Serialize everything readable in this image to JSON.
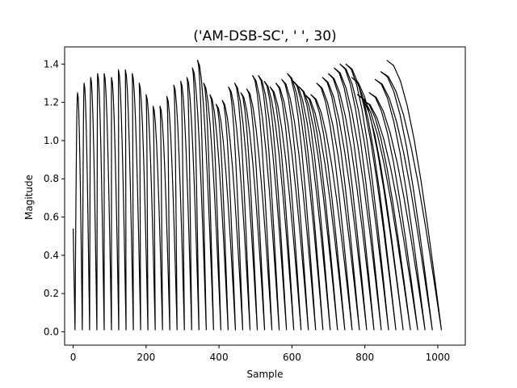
{
  "chart_data": {
    "type": "line",
    "title": "('AM-DSB-SC', '  ', 30)",
    "xlabel": "Sample",
    "ylabel": "Magitude",
    "xlim": [
      -23.5,
      1075.5
    ],
    "ylim": [
      -0.07,
      1.49
    ],
    "xticks": [
      0,
      200,
      400,
      600,
      800,
      1000
    ],
    "yticks": [
      0.0,
      0.2,
      0.4,
      0.6,
      0.8,
      1.0,
      1.2,
      1.4
    ],
    "xtick_labels": [
      "0",
      "200",
      "400",
      "600",
      "800",
      "1000"
    ],
    "ytick_labels": [
      "0.0",
      "0.2",
      "0.4",
      "0.6",
      "0.8",
      "1.0",
      "1.2",
      "1.4"
    ],
    "grid": false,
    "line_color": "#000000",
    "series": [
      {
        "name": "",
        "first_value": 0.54,
        "last_value": 0.75,
        "x_end": 1023,
        "troughs": [
          5,
          25,
          45,
          65,
          85,
          105,
          125,
          145,
          165,
          185,
          205,
          225,
          245,
          265,
          285,
          305,
          325,
          345,
          365,
          385,
          405,
          425,
          445,
          465,
          485,
          505,
          525,
          545,
          565,
          585,
          605,
          625,
          645,
          665,
          685,
          705,
          725,
          745,
          765,
          785,
          805,
          825,
          845,
          865,
          885,
          905,
          925,
          945,
          965,
          985,
          1010
        ],
        "peaks": [
          {
            "x": 12,
            "y": 1.25
          },
          {
            "x": 30,
            "y": 1.3
          },
          {
            "x": 48,
            "y": 1.33
          },
          {
            "x": 67,
            "y": 1.35
          },
          {
            "x": 85,
            "y": 1.35
          },
          {
            "x": 105,
            "y": 1.33
          },
          {
            "x": 124,
            "y": 1.37
          },
          {
            "x": 143,
            "y": 1.37
          },
          {
            "x": 162,
            "y": 1.35
          },
          {
            "x": 181,
            "y": 1.3
          },
          {
            "x": 200,
            "y": 1.24
          },
          {
            "x": 219,
            "y": 1.18
          },
          {
            "x": 238,
            "y": 1.18
          },
          {
            "x": 257,
            "y": 1.23
          },
          {
            "x": 276,
            "y": 1.29
          },
          {
            "x": 295,
            "y": 1.31
          },
          {
            "x": 312,
            "y": 1.33
          },
          {
            "x": 327,
            "y": 1.38
          },
          {
            "x": 341,
            "y": 1.42
          },
          {
            "x": 358,
            "y": 1.3
          },
          {
            "x": 375,
            "y": 1.24
          },
          {
            "x": 392,
            "y": 1.19
          },
          {
            "x": 409,
            "y": 1.21
          },
          {
            "x": 426,
            "y": 1.28
          },
          {
            "x": 443,
            "y": 1.3
          },
          {
            "x": 460,
            "y": 1.25
          },
          {
            "x": 476,
            "y": 1.27
          },
          {
            "x": 492,
            "y": 1.34
          },
          {
            "x": 508,
            "y": 1.34
          },
          {
            "x": 524,
            "y": 1.31
          },
          {
            "x": 540,
            "y": 1.28
          },
          {
            "x": 556,
            "y": 1.3
          },
          {
            "x": 572,
            "y": 1.32
          },
          {
            "x": 588,
            "y": 1.35
          },
          {
            "x": 604,
            "y": 1.31
          },
          {
            "x": 620,
            "y": 1.28
          },
          {
            "x": 636,
            "y": 1.24
          },
          {
            "x": 652,
            "y": 1.24
          },
          {
            "x": 668,
            "y": 1.3
          },
          {
            "x": 684,
            "y": 1.33
          },
          {
            "x": 700,
            "y": 1.35
          },
          {
            "x": 716,
            "y": 1.38
          },
          {
            "x": 732,
            "y": 1.4
          },
          {
            "x": 748,
            "y": 1.4
          },
          {
            "x": 764,
            "y": 1.33
          },
          {
            "x": 780,
            "y": 1.24
          },
          {
            "x": 796,
            "y": 1.21
          },
          {
            "x": 812,
            "y": 1.25
          },
          {
            "x": 828,
            "y": 1.32
          },
          {
            "x": 844,
            "y": 1.36
          },
          {
            "x": 860,
            "y": 1.42
          },
          {
            "x": 876,
            "y": 1.43
          },
          {
            "x": 892,
            "y": 1.38
          },
          {
            "x": 908,
            "y": 1.32
          },
          {
            "x": 924,
            "y": 1.35
          },
          {
            "x": 940,
            "y": 1.42
          },
          {
            "x": 956,
            "y": 1.41
          },
          {
            "x": 972,
            "y": 1.4
          },
          {
            "x": 988,
            "y": 1.39
          },
          {
            "x": 1004,
            "y": 1.36
          },
          {
            "x": 1019,
            "y": 1.35
          }
        ]
      }
    ]
  }
}
